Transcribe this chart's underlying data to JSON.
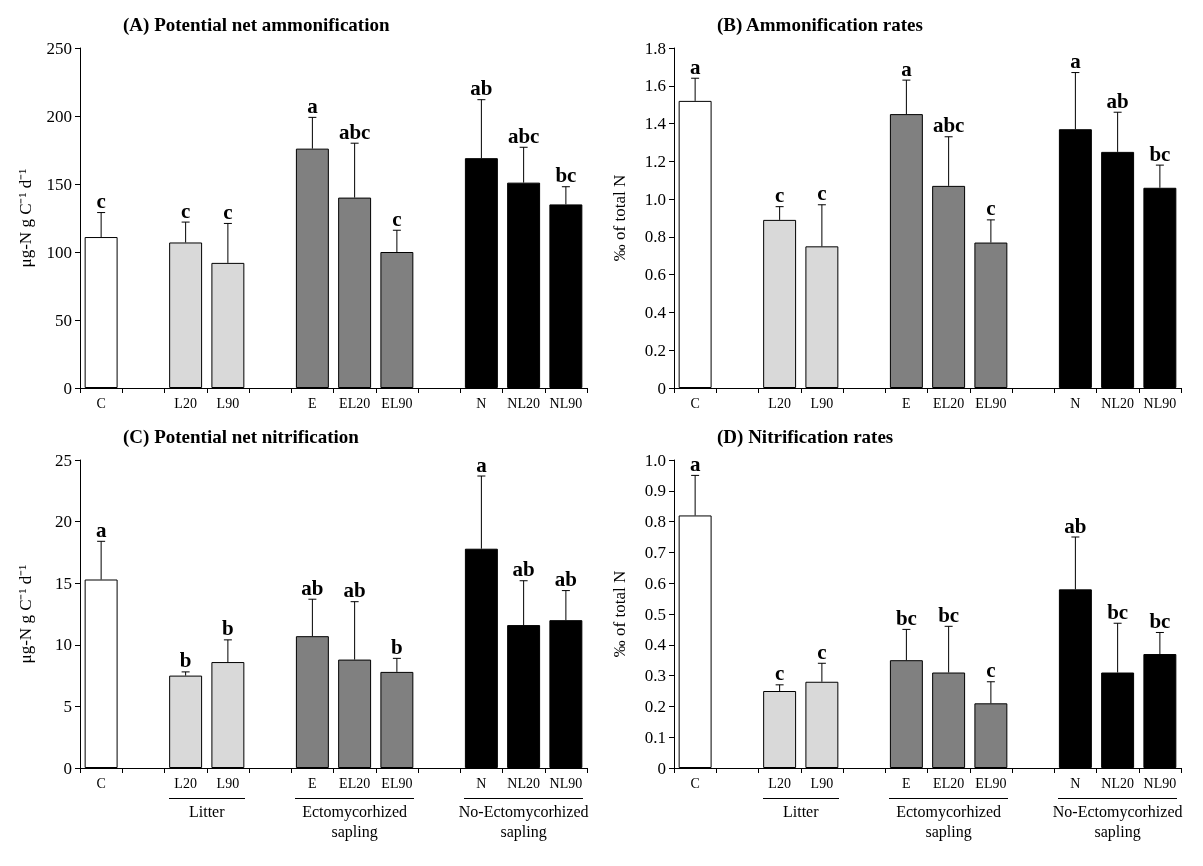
{
  "chart_data": [
    {
      "type": "bar",
      "title": "(A) Potential net ammonification",
      "ylabel": "μg-N g C⁻¹ d⁻¹",
      "categories": [
        "C",
        null,
        "L20",
        "L90",
        null,
        "E",
        "EL20",
        "EL90",
        null,
        "N",
        "NL20",
        "NL90"
      ],
      "values": [
        111,
        null,
        107,
        92,
        null,
        176,
        140,
        100,
        null,
        169,
        151,
        135
      ],
      "errors": [
        18,
        null,
        15,
        29,
        null,
        23,
        40,
        16,
        null,
        43,
        26,
        13
      ],
      "colors": [
        "#ffffff",
        null,
        "#d9d9d9",
        "#d9d9d9",
        null,
        "#808080",
        "#808080",
        "#808080",
        null,
        "#000000",
        "#000000",
        "#000000"
      ],
      "annotations": [
        {
          "text": "c",
          "x": "C",
          "y": 129
        },
        {
          "text": "c",
          "x": "L20",
          "y": 122
        },
        {
          "text": "c",
          "x": "L90",
          "y": 121
        },
        {
          "text": "a",
          "x": "E",
          "y": 199
        },
        {
          "text": "abc",
          "x": "EL20",
          "y": 180
        },
        {
          "text": "c",
          "x": "EL90",
          "y": 116
        },
        {
          "text": "ab",
          "x": "N",
          "y": 212
        },
        {
          "text": "abc",
          "x": "NL20",
          "y": 177
        },
        {
          "text": "bc",
          "x": "NL90",
          "y": 148
        }
      ],
      "ylim": [
        0,
        250
      ],
      "yticks": [
        0,
        50,
        100,
        150,
        200,
        250
      ],
      "grid": false
    },
    {
      "type": "bar",
      "title": "(B) Ammonification rates",
      "ylabel": "‰ of total N",
      "categories": [
        "C",
        null,
        "L20",
        "L90",
        null,
        "E",
        "EL20",
        "EL90",
        null,
        "N",
        "NL20",
        "NL90"
      ],
      "values": [
        1.52,
        null,
        0.89,
        0.75,
        null,
        1.45,
        1.07,
        0.77,
        null,
        1.37,
        1.25,
        1.06
      ],
      "errors": [
        0.12,
        null,
        0.07,
        0.22,
        null,
        0.18,
        0.26,
        0.12,
        null,
        0.3,
        0.21,
        0.12
      ],
      "colors": [
        "#ffffff",
        null,
        "#d9d9d9",
        "#d9d9d9",
        null,
        "#808080",
        "#808080",
        "#808080",
        null,
        "#000000",
        "#000000",
        "#000000"
      ],
      "annotations": [
        {
          "text": "a",
          "x": "C",
          "y": 1.64
        },
        {
          "text": "c",
          "x": "L20",
          "y": 0.96
        },
        {
          "text": "c",
          "x": "L90",
          "y": 0.97
        },
        {
          "text": "a",
          "x": "E",
          "y": 1.63
        },
        {
          "text": "abc",
          "x": "EL20",
          "y": 1.33
        },
        {
          "text": "c",
          "x": "EL90",
          "y": 0.89
        },
        {
          "text": "a",
          "x": "N",
          "y": 1.67
        },
        {
          "text": "ab",
          "x": "NL20",
          "y": 1.46
        },
        {
          "text": "bc",
          "x": "NL90",
          "y": 1.18
        }
      ],
      "ylim": [
        0,
        1.8
      ],
      "yticks": [
        0,
        0.2,
        0.4,
        0.6,
        0.8,
        {
          "value": 1,
          "label": "1.0"
        },
        1.2,
        1.4,
        1.6,
        1.8
      ],
      "grid": false
    },
    {
      "type": "bar",
      "title": "(C) Potential net nitrification",
      "ylabel": "μg-N g C⁻¹ d⁻¹",
      "categories": [
        "C",
        null,
        "L20",
        "L90",
        null,
        "E",
        "EL20",
        "EL90",
        null,
        "N",
        "NL20",
        "NL90"
      ],
      "values": [
        15.3,
        null,
        7.5,
        8.6,
        null,
        10.7,
        8.8,
        7.8,
        null,
        17.8,
        11.6,
        12.0
      ],
      "errors": [
        3.1,
        null,
        0.3,
        1.8,
        null,
        3.0,
        4.7,
        1.1,
        null,
        5.9,
        3.6,
        2.4
      ],
      "colors": [
        "#ffffff",
        null,
        "#d9d9d9",
        "#d9d9d9",
        null,
        "#808080",
        "#808080",
        "#808080",
        null,
        "#000000",
        "#000000",
        "#000000"
      ],
      "annotations": [
        {
          "text": "a",
          "x": "C",
          "y": 18.4
        },
        {
          "text": "b",
          "x": "L20",
          "y": 7.8
        },
        {
          "text": "b",
          "x": "L90",
          "y": 10.4
        },
        {
          "text": "ab",
          "x": "E",
          "y": 13.7
        },
        {
          "text": "ab",
          "x": "EL20",
          "y": 13.5
        },
        {
          "text": "b",
          "x": "EL90",
          "y": 8.9
        },
        {
          "text": "a",
          "x": "N",
          "y": 23.7
        },
        {
          "text": "ab",
          "x": "NL20",
          "y": 15.2
        },
        {
          "text": "ab",
          "x": "NL90",
          "y": 14.4
        },
        "Litter",
        "Ectomycorhized sapling",
        "No-Ectomycorhized sapling"
      ],
      "ylim": [
        0,
        25
      ],
      "yticks": [
        0,
        5,
        10,
        15,
        20,
        25
      ],
      "grid": false
    },
    {
      "type": "bar",
      "title": "(D) Nitrification rates",
      "ylabel": "‰ of total N",
      "categories": [
        "C",
        null,
        "L20",
        "L90",
        null,
        "E",
        "EL20",
        "EL90",
        null,
        "N",
        "NL20",
        "NL90"
      ],
      "values": [
        0.82,
        null,
        0.25,
        0.28,
        null,
        0.35,
        0.31,
        0.21,
        null,
        0.58,
        0.31,
        0.37
      ],
      "errors": [
        0.13,
        null,
        0.02,
        0.06,
        null,
        0.1,
        0.15,
        0.07,
        null,
        0.17,
        0.16,
        0.07
      ],
      "colors": [
        "#ffffff",
        null,
        "#d9d9d9",
        "#d9d9d9",
        null,
        "#808080",
        "#808080",
        "#808080",
        null,
        "#000000",
        "#000000",
        "#000000"
      ],
      "annotations": [
        {
          "text": "a",
          "x": "C",
          "y": 0.95
        },
        {
          "text": "c",
          "x": "L20",
          "y": 0.27
        },
        {
          "text": "c",
          "x": "L90",
          "y": 0.34
        },
        {
          "text": "bc",
          "x": "E",
          "y": 0.45
        },
        {
          "text": "bc",
          "x": "EL20",
          "y": 0.46
        },
        {
          "text": "c",
          "x": "EL90",
          "y": 0.28
        },
        {
          "text": "ab",
          "x": "N",
          "y": 0.75
        },
        {
          "text": "bc",
          "x": "NL20",
          "y": 0.47
        },
        {
          "text": "bc",
          "x": "NL90",
          "y": 0.44
        },
        "Litter",
        "Ectomycorhized sapling",
        "No-Ectomycorhized sapling"
      ],
      "ylim": [
        0,
        1
      ],
      "yticks": [
        0,
        0.1,
        0.2,
        0.3,
        0.4,
        0.5,
        0.6,
        0.7,
        0.8,
        0.9,
        {
          "value": 1,
          "label": "1.0"
        }
      ],
      "grid": false
    }
  ]
}
